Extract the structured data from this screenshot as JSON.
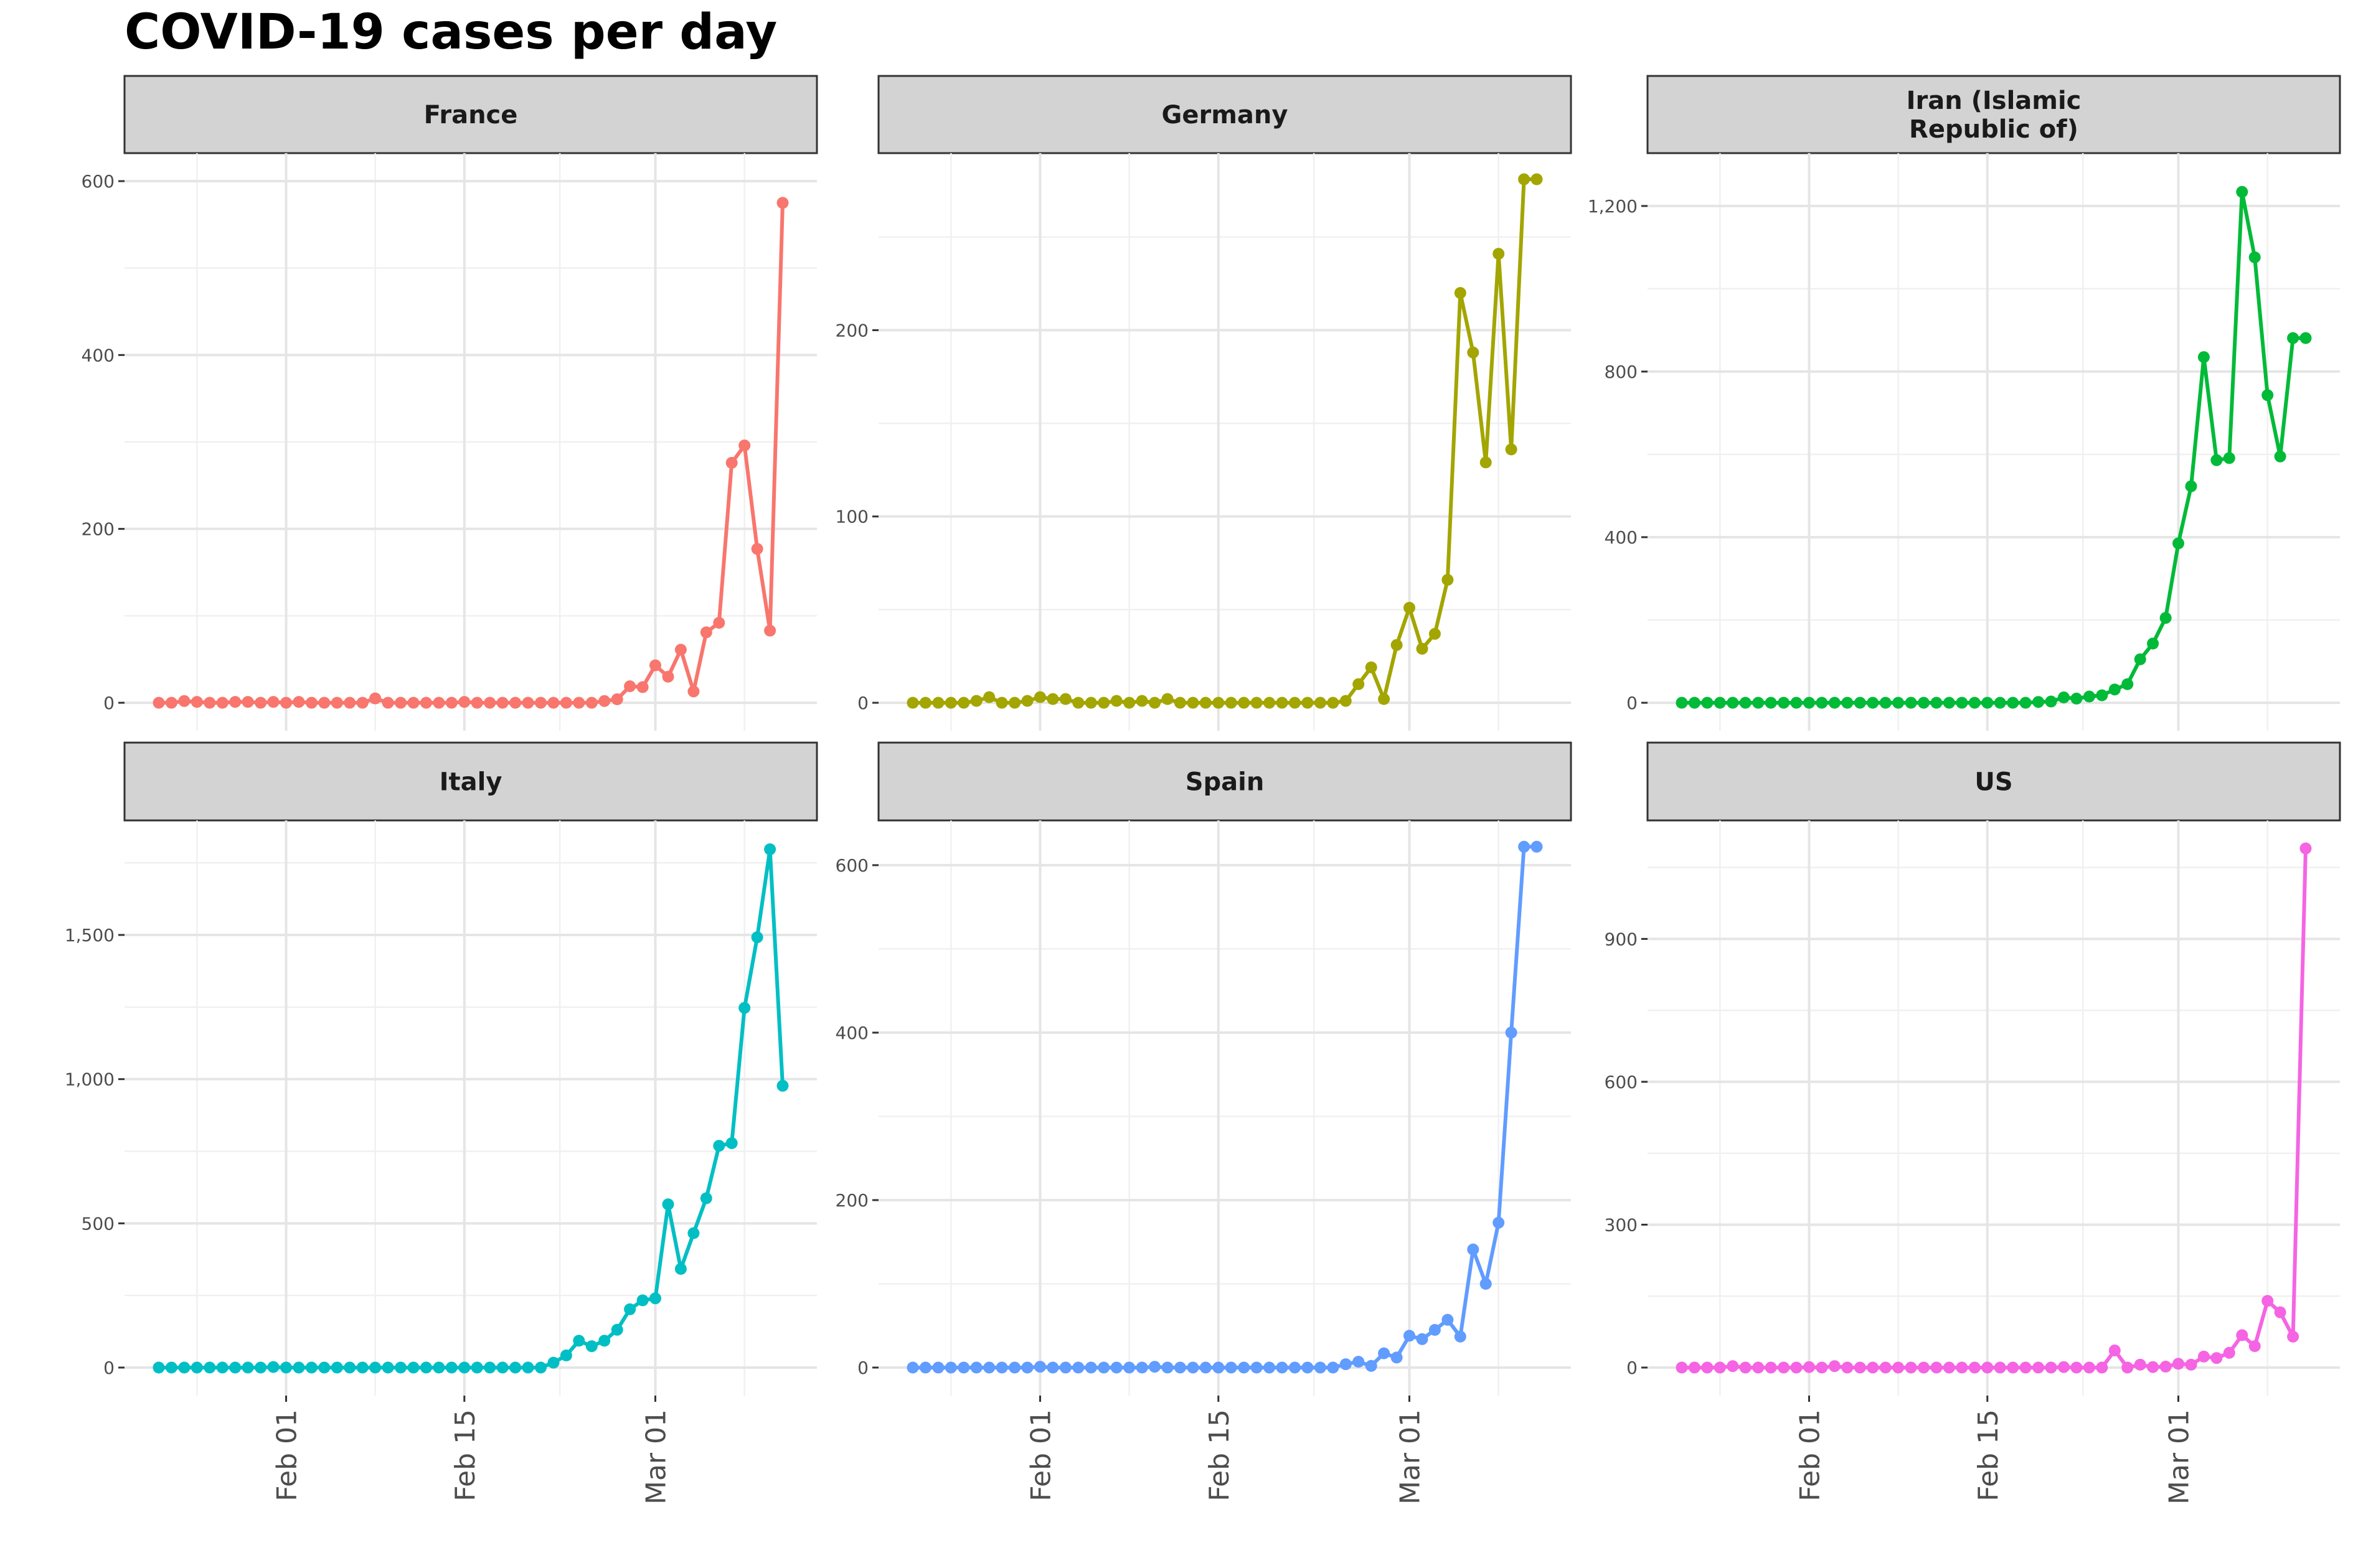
{
  "title": "COVID-19 cases per day",
  "chart_data": {
    "type": "line",
    "x_date_start": "2020-01-22",
    "x_date_end": "2020-03-11",
    "x_axis_ticks": [
      "Feb 01",
      "Feb 15",
      "Mar 01"
    ],
    "grid": true,
    "panels": [
      {
        "name": "France",
        "strip_lines": [
          "France"
        ],
        "color": "#F8766D",
        "ylim": [
          0,
          600
        ],
        "y_ticks": [
          {
            "value": 0,
            "label": "0"
          },
          {
            "value": 200,
            "label": "200"
          },
          {
            "value": 400,
            "label": "400"
          },
          {
            "value": 600,
            "label": "600"
          }
        ],
        "values": [
          0,
          0,
          2,
          1,
          0,
          0,
          1,
          1,
          0,
          1,
          0,
          1,
          0,
          0,
          0,
          0,
          0,
          5,
          0,
          0,
          0,
          0,
          0,
          0,
          1,
          0,
          0,
          0,
          0,
          0,
          0,
          0,
          0,
          0,
          0,
          2,
          4,
          19,
          18,
          43,
          30,
          61,
          13,
          81,
          92,
          276,
          296,
          177,
          83,
          575
        ]
      },
      {
        "name": "Germany",
        "strip_lines": [
          "Germany"
        ],
        "color": "#A3A500",
        "ylim": [
          0,
          280
        ],
        "y_ticks": [
          {
            "value": 0,
            "label": "0"
          },
          {
            "value": 100,
            "label": "100"
          },
          {
            "value": 200,
            "label": "200"
          }
        ],
        "values": [
          0,
          0,
          0,
          0,
          0,
          1,
          3,
          0,
          0,
          1,
          3,
          2,
          2,
          0,
          0,
          0,
          1,
          0,
          1,
          0,
          2,
          0,
          0,
          0,
          0,
          0,
          0,
          0,
          0,
          0,
          0,
          0,
          0,
          0,
          1,
          10,
          19,
          2,
          31,
          51,
          29,
          37,
          66,
          220,
          188,
          129,
          241,
          136,
          281,
          281
        ]
      },
      {
        "name": "Iran (Islamic Republic of)",
        "strip_lines": [
          "Iran (Islamic",
          "Republic of)"
        ],
        "color": "#00BA38",
        "ylim": [
          0,
          1260
        ],
        "y_ticks": [
          {
            "value": 0,
            "label": "0"
          },
          {
            "value": 400,
            "label": "400"
          },
          {
            "value": 800,
            "label": "800"
          },
          {
            "value": 1200,
            "label": "1,200"
          }
        ],
        "values": [
          0,
          0,
          0,
          0,
          0,
          0,
          0,
          0,
          0,
          0,
          0,
          0,
          0,
          0,
          0,
          0,
          0,
          0,
          0,
          0,
          0,
          0,
          0,
          0,
          0,
          0,
          0,
          0,
          2,
          3,
          13,
          10,
          15,
          18,
          32,
          45,
          105,
          143,
          205,
          385,
          523,
          835,
          586,
          591,
          1234,
          1076,
          743,
          595,
          881,
          881
        ]
      },
      {
        "name": "Italy",
        "strip_lines": [
          "Italy"
        ],
        "color": "#00BFC4",
        "ylim": [
          0,
          1800
        ],
        "y_ticks": [
          {
            "value": 0,
            "label": "0"
          },
          {
            "value": 500,
            "label": "500"
          },
          {
            "value": 1000,
            "label": "1,000"
          },
          {
            "value": 1500,
            "label": "1,500"
          }
        ],
        "values": [
          0,
          0,
          0,
          0,
          0,
          0,
          0,
          0,
          0,
          2,
          0,
          0,
          0,
          0,
          0,
          0,
          0,
          0,
          0,
          0,
          0,
          0,
          0,
          0,
          0,
          0,
          0,
          0,
          0,
          0,
          0,
          17,
          42,
          93,
          74,
          93,
          131,
          202,
          233,
          240,
          566,
          342,
          466,
          587,
          769,
          778,
          1247,
          1492,
          1797,
          977
        ]
      },
      {
        "name": "Spain",
        "strip_lines": [
          "Spain"
        ],
        "color": "#619CFF",
        "ylim": [
          0,
          620
        ],
        "y_ticks": [
          {
            "value": 0,
            "label": "0"
          },
          {
            "value": 200,
            "label": "200"
          },
          {
            "value": 400,
            "label": "400"
          },
          {
            "value": 600,
            "label": "600"
          }
        ],
        "values": [
          0,
          0,
          0,
          0,
          0,
          0,
          0,
          0,
          0,
          0,
          1,
          0,
          0,
          0,
          0,
          0,
          0,
          0,
          0,
          1,
          0,
          0,
          0,
          0,
          0,
          0,
          0,
          0,
          0,
          0,
          0,
          0,
          0,
          0,
          4,
          7,
          2,
          17,
          12,
          38,
          34,
          45,
          57,
          37,
          141,
          100,
          173,
          400,
          622,
          622
        ]
      },
      {
        "name": "US",
        "strip_lines": [
          "US"
        ],
        "color": "#F564E3",
        "ylim": [
          0,
          1090
        ],
        "y_ticks": [
          {
            "value": 0,
            "label": "0"
          },
          {
            "value": 300,
            "label": "300"
          },
          {
            "value": 600,
            "label": "600"
          },
          {
            "value": 900,
            "label": "900"
          }
        ],
        "values": [
          0,
          0,
          0,
          0,
          3,
          0,
          0,
          0,
          0,
          0,
          1,
          0,
          3,
          0,
          0,
          0,
          0,
          0,
          0,
          0,
          0,
          0,
          0,
          0,
          0,
          0,
          0,
          0,
          0,
          0,
          1,
          0,
          0,
          0,
          36,
          0,
          6,
          1,
          2,
          8,
          6,
          23,
          20,
          31,
          68,
          45,
          140,
          116,
          65,
          1090
        ]
      }
    ]
  }
}
